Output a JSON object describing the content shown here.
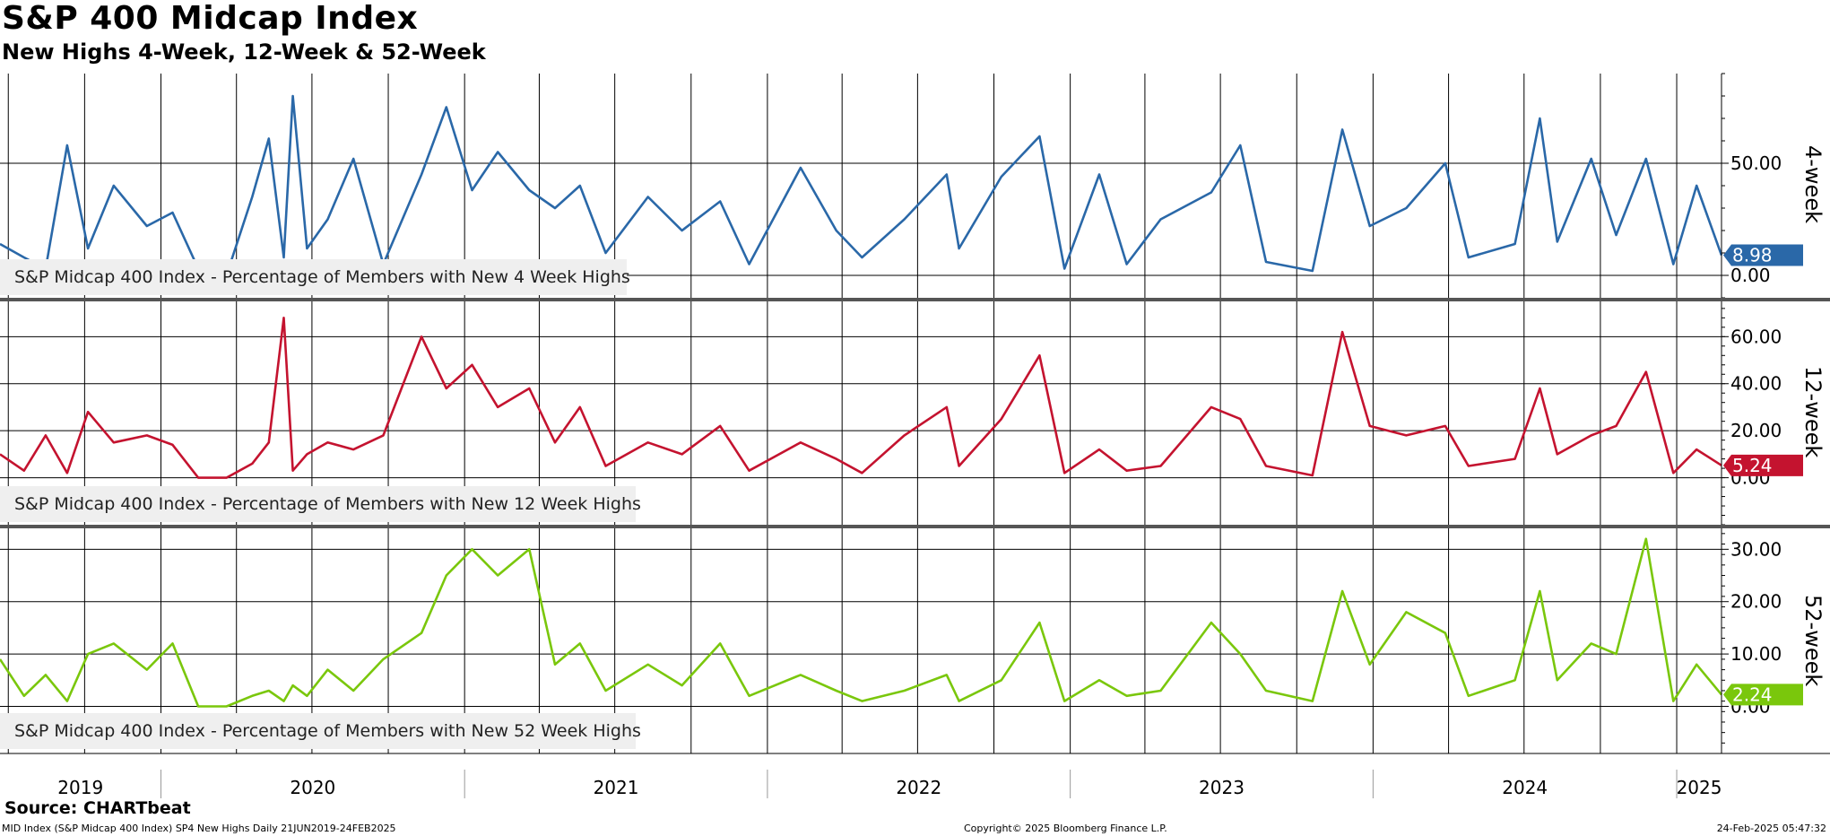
{
  "title": "S&P 400 Midcap Index",
  "subtitle": "New Highs 4-Week, 12-Week & 52-Week",
  "source": "Source: CHARTbeat",
  "footer": {
    "left": "MID Index (S&P Midcap 400 Index) SP4 New Highs  Daily 21JUN2019-24FEB2025",
    "center": "Copyright© 2025 Bloomberg Finance L.P.",
    "right": "24-Feb-2025 05:47:32"
  },
  "x_axis": {
    "labels": [
      "2019",
      "2020",
      "2021",
      "2022",
      "2023",
      "2024",
      "2025"
    ],
    "start": "2019-06-21",
    "end": "2025-02-24"
  },
  "chart_data": [
    {
      "type": "line",
      "axis_title": "4-week",
      "legend": "S&P Midcap 400 Index - Percentage of Members with New 4 Week Highs",
      "color": "#2a68a8",
      "last_value": "8.98",
      "ylim": [
        -10,
        90
      ],
      "ticks": [
        "0.00",
        "50.00"
      ],
      "tick_values": [
        0,
        50
      ],
      "points": [
        [
          "2019-06-21",
          14
        ],
        [
          "2019-07-20",
          8
        ],
        [
          "2019-08-15",
          3
        ],
        [
          "2019-09-10",
          58
        ],
        [
          "2019-10-05",
          12
        ],
        [
          "2019-11-05",
          40
        ],
        [
          "2019-12-15",
          22
        ],
        [
          "2020-01-15",
          28
        ],
        [
          "2020-02-15",
          3
        ],
        [
          "2020-03-20",
          0
        ],
        [
          "2020-04-20",
          35
        ],
        [
          "2020-05-10",
          61
        ],
        [
          "2020-05-28",
          8
        ],
        [
          "2020-06-08",
          80
        ],
        [
          "2020-06-25",
          12
        ],
        [
          "2020-07-20",
          25
        ],
        [
          "2020-08-20",
          52
        ],
        [
          "2020-09-25",
          5
        ],
        [
          "2020-11-10",
          45
        ],
        [
          "2020-12-10",
          75
        ],
        [
          "2021-01-10",
          38
        ],
        [
          "2021-02-10",
          55
        ],
        [
          "2021-03-20",
          38
        ],
        [
          "2021-04-20",
          30
        ],
        [
          "2021-05-20",
          40
        ],
        [
          "2021-06-20",
          10
        ],
        [
          "2021-08-10",
          35
        ],
        [
          "2021-09-20",
          20
        ],
        [
          "2021-11-05",
          33
        ],
        [
          "2021-12-10",
          5
        ],
        [
          "2022-02-10",
          48
        ],
        [
          "2022-03-25",
          20
        ],
        [
          "2022-04-25",
          8
        ],
        [
          "2022-06-15",
          25
        ],
        [
          "2022-08-05",
          45
        ],
        [
          "2022-08-20",
          12
        ],
        [
          "2022-10-10",
          44
        ],
        [
          "2022-11-25",
          62
        ],
        [
          "2022-12-25",
          3
        ],
        [
          "2023-02-05",
          45
        ],
        [
          "2023-03-10",
          5
        ],
        [
          "2023-04-20",
          25
        ],
        [
          "2023-06-20",
          37
        ],
        [
          "2023-07-25",
          58
        ],
        [
          "2023-08-25",
          6
        ],
        [
          "2023-10-20",
          2
        ],
        [
          "2023-11-25",
          65
        ],
        [
          "2023-12-28",
          22
        ],
        [
          "2024-02-10",
          30
        ],
        [
          "2024-03-28",
          50
        ],
        [
          "2024-04-25",
          8
        ],
        [
          "2024-06-20",
          14
        ],
        [
          "2024-07-20",
          70
        ],
        [
          "2024-08-10",
          15
        ],
        [
          "2024-09-20",
          52
        ],
        [
          "2024-10-20",
          18
        ],
        [
          "2024-11-25",
          52
        ],
        [
          "2024-12-28",
          5
        ],
        [
          "2025-01-25",
          40
        ],
        [
          "2025-02-24",
          8.98
        ]
      ]
    },
    {
      "type": "line",
      "axis_title": "12-week",
      "legend": "S&P Midcap 400 Index - Percentage of Members with New 12 Week Highs",
      "color": "#c4132f",
      "last_value": "5.24",
      "ylim": [
        -20,
        75
      ],
      "ticks": [
        "0.00",
        "20.00",
        "40.00",
        "60.00"
      ],
      "tick_values": [
        0,
        20,
        40,
        60
      ],
      "points": [
        [
          "2019-06-21",
          10
        ],
        [
          "2019-07-20",
          3
        ],
        [
          "2019-08-15",
          18
        ],
        [
          "2019-09-10",
          2
        ],
        [
          "2019-10-05",
          28
        ],
        [
          "2019-11-05",
          15
        ],
        [
          "2019-12-15",
          18
        ],
        [
          "2020-01-15",
          14
        ],
        [
          "2020-02-15",
          0
        ],
        [
          "2020-03-20",
          0
        ],
        [
          "2020-04-20",
          6
        ],
        [
          "2020-05-10",
          15
        ],
        [
          "2020-05-28",
          68
        ],
        [
          "2020-06-08",
          3
        ],
        [
          "2020-06-25",
          10
        ],
        [
          "2020-07-20",
          15
        ],
        [
          "2020-08-20",
          12
        ],
        [
          "2020-09-25",
          18
        ],
        [
          "2020-11-10",
          60
        ],
        [
          "2020-12-10",
          38
        ],
        [
          "2021-01-10",
          48
        ],
        [
          "2021-02-10",
          30
        ],
        [
          "2021-03-20",
          38
        ],
        [
          "2021-04-20",
          15
        ],
        [
          "2021-05-20",
          30
        ],
        [
          "2021-06-20",
          5
        ],
        [
          "2021-08-10",
          15
        ],
        [
          "2021-09-20",
          10
        ],
        [
          "2021-11-05",
          22
        ],
        [
          "2021-12-10",
          3
        ],
        [
          "2022-02-10",
          15
        ],
        [
          "2022-03-25",
          8
        ],
        [
          "2022-04-25",
          2
        ],
        [
          "2022-06-15",
          18
        ],
        [
          "2022-08-05",
          30
        ],
        [
          "2022-08-20",
          5
        ],
        [
          "2022-10-10",
          25
        ],
        [
          "2022-11-25",
          52
        ],
        [
          "2022-12-25",
          2
        ],
        [
          "2023-02-05",
          12
        ],
        [
          "2023-03-10",
          3
        ],
        [
          "2023-04-20",
          5
        ],
        [
          "2023-06-20",
          30
        ],
        [
          "2023-07-25",
          25
        ],
        [
          "2023-08-25",
          5
        ],
        [
          "2023-10-20",
          1
        ],
        [
          "2023-11-25",
          62
        ],
        [
          "2023-12-28",
          22
        ],
        [
          "2024-02-10",
          18
        ],
        [
          "2024-03-28",
          22
        ],
        [
          "2024-04-25",
          5
        ],
        [
          "2024-06-20",
          8
        ],
        [
          "2024-07-20",
          38
        ],
        [
          "2024-08-10",
          10
        ],
        [
          "2024-09-20",
          18
        ],
        [
          "2024-10-20",
          22
        ],
        [
          "2024-11-25",
          45
        ],
        [
          "2024-12-28",
          2
        ],
        [
          "2025-01-25",
          12
        ],
        [
          "2025-02-24",
          5.24
        ]
      ]
    },
    {
      "type": "line",
      "axis_title": "52-week",
      "legend": "S&P Midcap 400 Index - Percentage of Members with New 52 Week Highs",
      "color": "#7ac70c",
      "last_value": "2.24",
      "ylim": [
        -9,
        34
      ],
      "ticks": [
        "0.00",
        "10.00",
        "20.00",
        "30.00"
      ],
      "tick_values": [
        0,
        10,
        20,
        30
      ],
      "points": [
        [
          "2019-06-21",
          9
        ],
        [
          "2019-07-20",
          2
        ],
        [
          "2019-08-15",
          6
        ],
        [
          "2019-09-10",
          1
        ],
        [
          "2019-10-05",
          10
        ],
        [
          "2019-11-05",
          12
        ],
        [
          "2019-12-15",
          7
        ],
        [
          "2020-01-15",
          12
        ],
        [
          "2020-02-15",
          0
        ],
        [
          "2020-03-20",
          0
        ],
        [
          "2020-04-20",
          2
        ],
        [
          "2020-05-10",
          3
        ],
        [
          "2020-05-28",
          1
        ],
        [
          "2020-06-08",
          4
        ],
        [
          "2020-06-25",
          2
        ],
        [
          "2020-07-20",
          7
        ],
        [
          "2020-08-20",
          3
        ],
        [
          "2020-09-25",
          9
        ],
        [
          "2020-11-10",
          14
        ],
        [
          "2020-12-10",
          25
        ],
        [
          "2021-01-10",
          30
        ],
        [
          "2021-02-10",
          25
        ],
        [
          "2021-03-20",
          30
        ],
        [
          "2021-04-20",
          8
        ],
        [
          "2021-05-20",
          12
        ],
        [
          "2021-06-20",
          3
        ],
        [
          "2021-08-10",
          8
        ],
        [
          "2021-09-20",
          4
        ],
        [
          "2021-11-05",
          12
        ],
        [
          "2021-12-10",
          2
        ],
        [
          "2022-02-10",
          6
        ],
        [
          "2022-03-25",
          3
        ],
        [
          "2022-04-25",
          1
        ],
        [
          "2022-06-15",
          3
        ],
        [
          "2022-08-05",
          6
        ],
        [
          "2022-08-20",
          1
        ],
        [
          "2022-10-10",
          5
        ],
        [
          "2022-11-25",
          16
        ],
        [
          "2022-12-25",
          1
        ],
        [
          "2023-02-05",
          5
        ],
        [
          "2023-03-10",
          2
        ],
        [
          "2023-04-20",
          3
        ],
        [
          "2023-06-20",
          16
        ],
        [
          "2023-07-25",
          10
        ],
        [
          "2023-08-25",
          3
        ],
        [
          "2023-10-20",
          1
        ],
        [
          "2023-11-25",
          22
        ],
        [
          "2023-12-28",
          8
        ],
        [
          "2024-02-10",
          18
        ],
        [
          "2024-03-28",
          14
        ],
        [
          "2024-04-25",
          2
        ],
        [
          "2024-06-20",
          5
        ],
        [
          "2024-07-20",
          22
        ],
        [
          "2024-08-10",
          5
        ],
        [
          "2024-09-20",
          12
        ],
        [
          "2024-10-20",
          10
        ],
        [
          "2024-11-25",
          32
        ],
        [
          "2024-12-28",
          1
        ],
        [
          "2025-01-25",
          8
        ],
        [
          "2025-02-24",
          2.24
        ]
      ]
    }
  ]
}
